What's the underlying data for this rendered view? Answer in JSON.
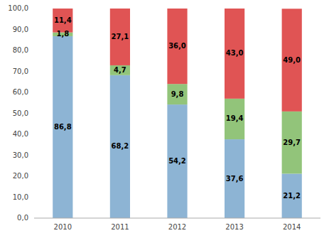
{
  "chart_data": {
    "type": "bar",
    "stacked": true,
    "data_labels": true,
    "grid": false,
    "categories": [
      "2010",
      "2011",
      "2012",
      "2013",
      "2014"
    ],
    "series": [
      {
        "color": "#8db4d4",
        "values": [
          86.8,
          68.2,
          54.2,
          37.6,
          21.2
        ],
        "value_labels": [
          "86,8",
          "68,2",
          "54,2",
          "37,6",
          "21,2"
        ]
      },
      {
        "color": "#92c47a",
        "values": [
          1.8,
          4.7,
          9.8,
          19.4,
          29.7
        ],
        "value_labels": [
          "1,8",
          "4,7",
          "9,8",
          "19,4",
          "29,7"
        ]
      },
      {
        "color": "#e05454",
        "values": [
          11.4,
          27.1,
          36.0,
          43.0,
          49.0
        ],
        "value_labels": [
          "11,4",
          "27,1",
          "36,0",
          "43,0",
          "49,0"
        ]
      }
    ],
    "ylim": [
      0,
      100
    ],
    "yticks": [
      {
        "value": 0,
        "label": "0,0"
      },
      {
        "value": 10,
        "label": "10,0"
      },
      {
        "value": 20,
        "label": "20,0"
      },
      {
        "value": 30,
        "label": "30,0"
      },
      {
        "value": 40,
        "label": "40,0"
      },
      {
        "value": 50,
        "label": "50,0"
      },
      {
        "value": 60,
        "label": "60,0"
      },
      {
        "value": 70,
        "label": "70,0"
      },
      {
        "value": 80,
        "label": "80,0"
      },
      {
        "value": 90,
        "label": "90,0"
      },
      {
        "value": 100,
        "label": "100,0"
      }
    ]
  }
}
